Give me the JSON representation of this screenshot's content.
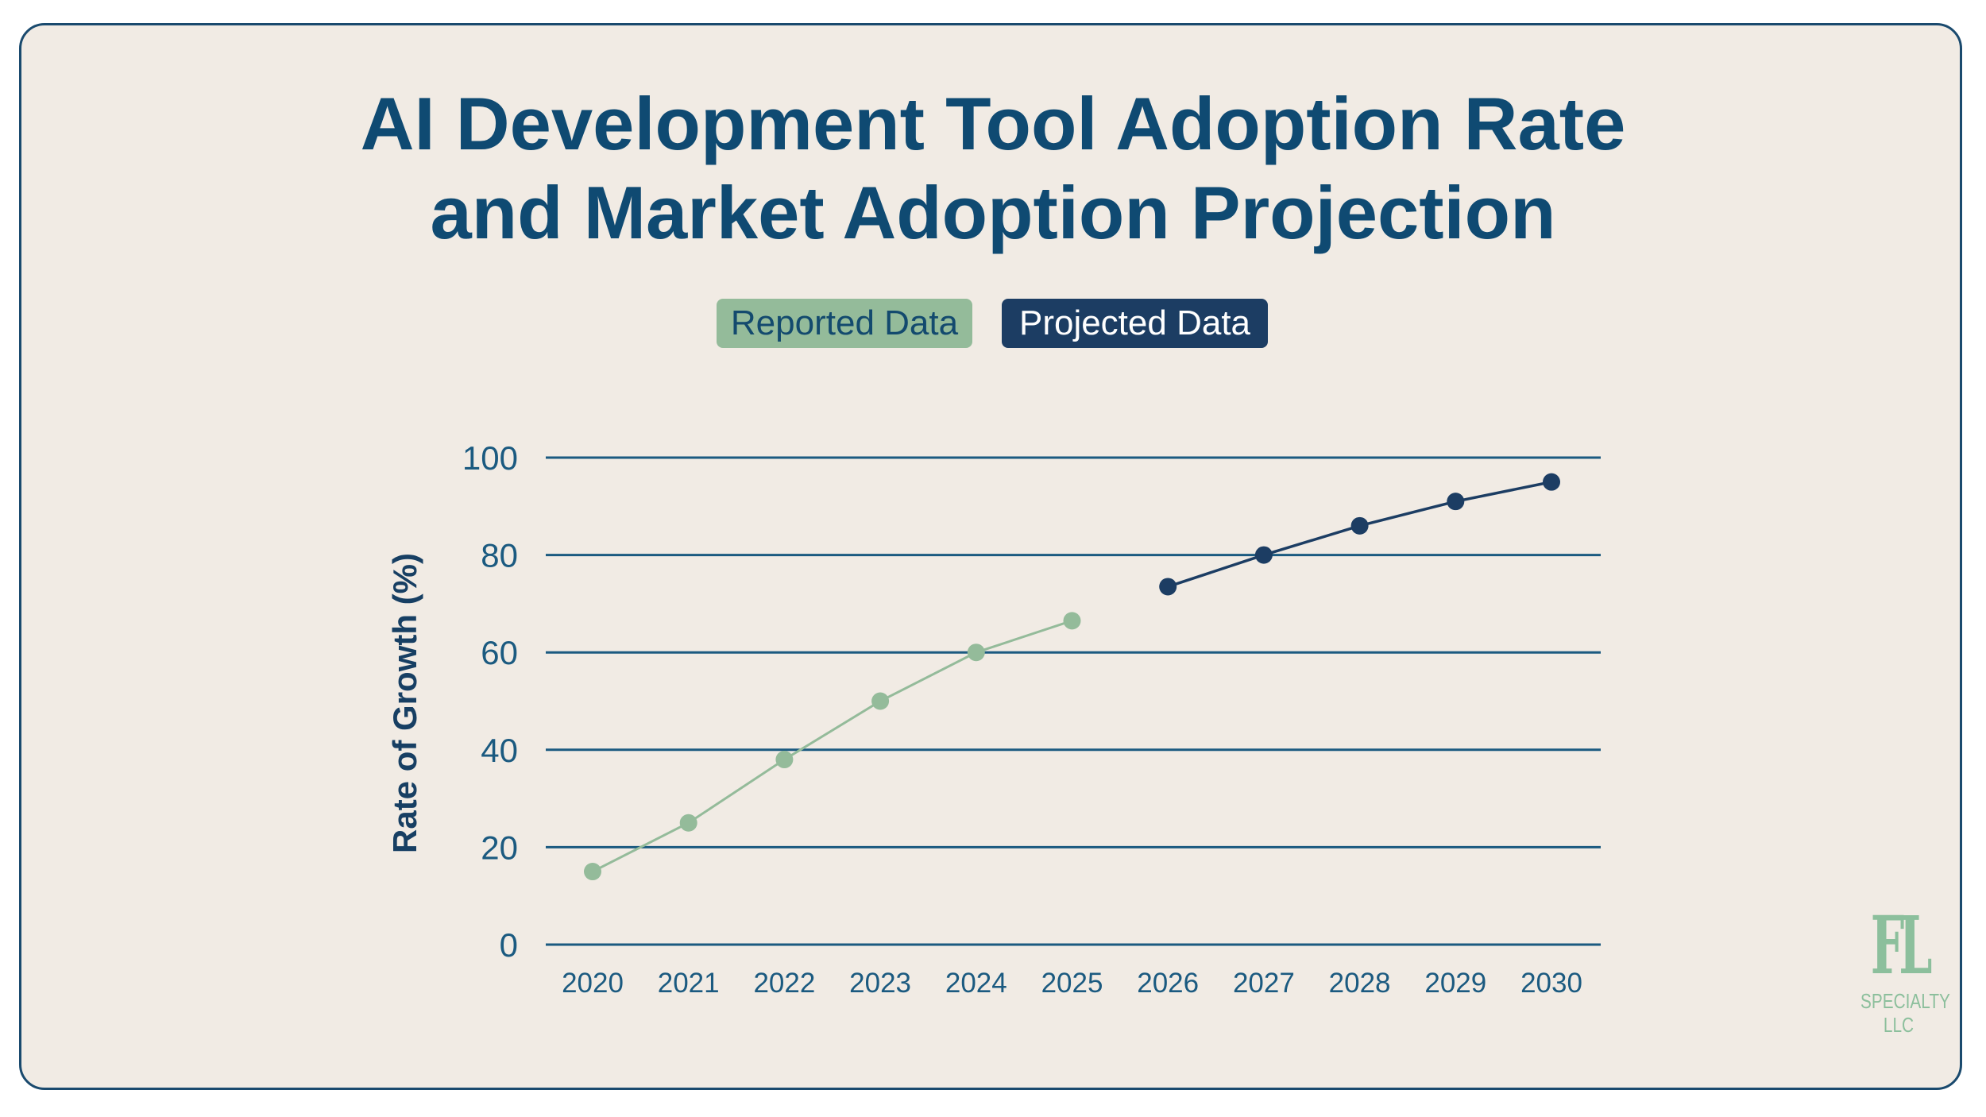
{
  "chart_data": {
    "type": "line",
    "title": "AI Development Tool Adoption Rate and Market Adoption Projection",
    "title_lines": [
      "AI Development Tool Adoption Rate",
      "and Market Adoption Projection"
    ],
    "ylabel": "Rate of Growth (%)",
    "xlabel": "",
    "ylim": [
      0,
      100
    ],
    "yticks": [
      0,
      20,
      40,
      60,
      80,
      100
    ],
    "categories": [
      "2020",
      "2021",
      "2022",
      "2023",
      "2024",
      "2025",
      "2026",
      "2027",
      "2028",
      "2029",
      "2030"
    ],
    "grid": "horizontal",
    "legend_placement": "top-center",
    "series": [
      {
        "name": "Reported Data",
        "color": "#94bb9a",
        "x": [
          "2020",
          "2021",
          "2022",
          "2023",
          "2024",
          "2025"
        ],
        "values": [
          15,
          25,
          38,
          50,
          60,
          66.5
        ]
      },
      {
        "name": "Projected Data",
        "color": "#1c3d63",
        "x": [
          "2026",
          "2027",
          "2028",
          "2029",
          "2030"
        ],
        "values": [
          73.5,
          80,
          86,
          91,
          95
        ]
      }
    ]
  },
  "logo": {
    "mark": "FL",
    "text_line1": "SPECIALTY",
    "text_line2": "LLC"
  },
  "colors": {
    "background": "#f1ebe4",
    "title": "#0f4a72",
    "grid": "#1b5a80",
    "reported": "#94bb9a",
    "projected": "#1c3d63"
  }
}
